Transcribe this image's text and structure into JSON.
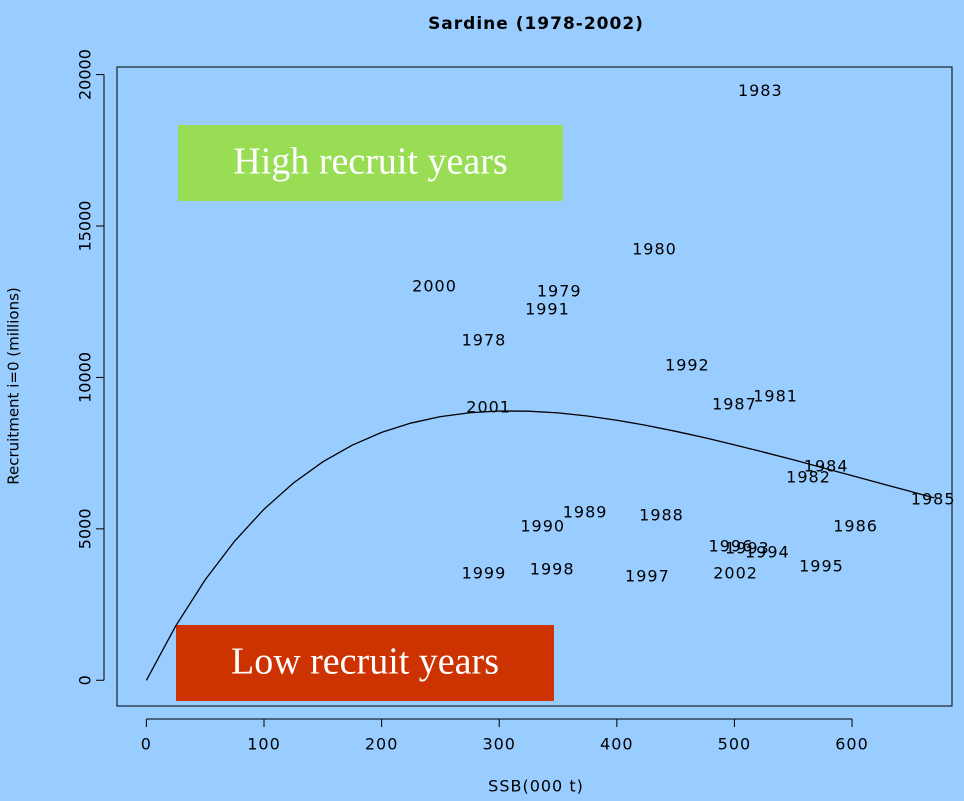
{
  "chart_data": {
    "type": "scatter",
    "title": "Sardine (1978-2002)",
    "xlabel": "SSB(000 t)",
    "ylabel": "Recruitment i=0 (millions)",
    "xlim": [
      -25,
      685
    ],
    "ylim": [
      -850,
      20250
    ],
    "xticks": [
      0,
      100,
      200,
      300,
      400,
      500,
      600
    ],
    "yticks": [
      0,
      5000,
      10000,
      15000,
      20000
    ],
    "labels": [
      "1983",
      "1980",
      "2000",
      "1979",
      "1991",
      "1978",
      "1992",
      "1987",
      "1981",
      "2001",
      "1984",
      "1982",
      "1985",
      "1986",
      "1989",
      "1988",
      "1990",
      "1996",
      "1993",
      "1994",
      "1995",
      "1999",
      "1998",
      "1997",
      "2002"
    ],
    "x": [
      522,
      432,
      245,
      351,
      341,
      287,
      460,
      500,
      535,
      291,
      578,
      563,
      669,
      603,
      373,
      438,
      337,
      497,
      511,
      528,
      574,
      287,
      345,
      426,
      501
    ],
    "values": [
      19438,
      14215,
      12992,
      12826,
      12231,
      11207,
      10380,
      9091,
      9355,
      8992,
      7041,
      6678,
      5950,
      5058,
      5521,
      5421,
      5058,
      4397,
      4331,
      4198,
      3736,
      3504,
      3636,
      3405,
      3504
    ],
    "point_color": "#000000",
    "curve": {
      "color": "#000000",
      "x": [
        0,
        25,
        50,
        75,
        100,
        125,
        150,
        175,
        200,
        225,
        250,
        275,
        300,
        325,
        350,
        375,
        400,
        425,
        450,
        475,
        500,
        525,
        550,
        575,
        600,
        625,
        650,
        670
      ],
      "values": [
        0,
        1799,
        3319,
        4593,
        5650,
        6515,
        7212,
        7762,
        8184,
        8493,
        8705,
        8833,
        8890,
        8885,
        8829,
        8725,
        8586,
        8417,
        8220,
        8006,
        7773,
        7531,
        7280,
        7019,
        6758,
        6494,
        6231,
        6020
      ]
    },
    "annotations": [
      {
        "text": "High recruit years",
        "color": "#99dd55"
      },
      {
        "text": "Low recruit years",
        "color": "#cc3300"
      }
    ]
  }
}
